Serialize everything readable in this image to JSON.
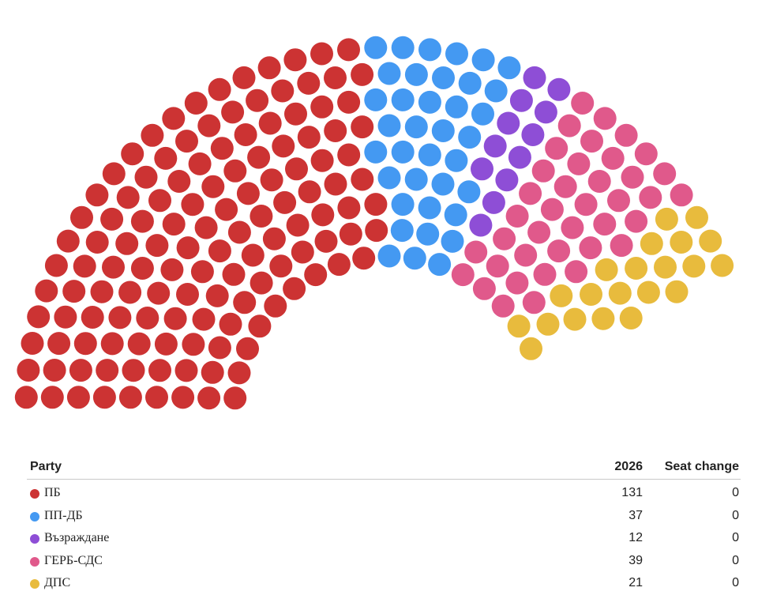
{
  "chart_data": {
    "type": "parliament",
    "total_seats": 240,
    "parties": [
      {
        "name": "ПБ",
        "seats": 131,
        "seat_change": "0",
        "color": "#cc3333"
      },
      {
        "name": "ПП-ДБ",
        "seats": 37,
        "seat_change": "0",
        "color": "#4499f2"
      },
      {
        "name": "Възраждане",
        "seats": 12,
        "seat_change": "0",
        "color": "#8e4ed6"
      },
      {
        "name": "ГЕРБ-СДС",
        "seats": 39,
        "seat_change": "0",
        "color": "#e0598b"
      },
      {
        "name": "ДПС",
        "seats": 21,
        "seat_change": "0",
        "color": "#e8bb3d"
      }
    ]
  },
  "table": {
    "header_party": "Party",
    "header_year": "2026",
    "header_change": "Seat change"
  }
}
